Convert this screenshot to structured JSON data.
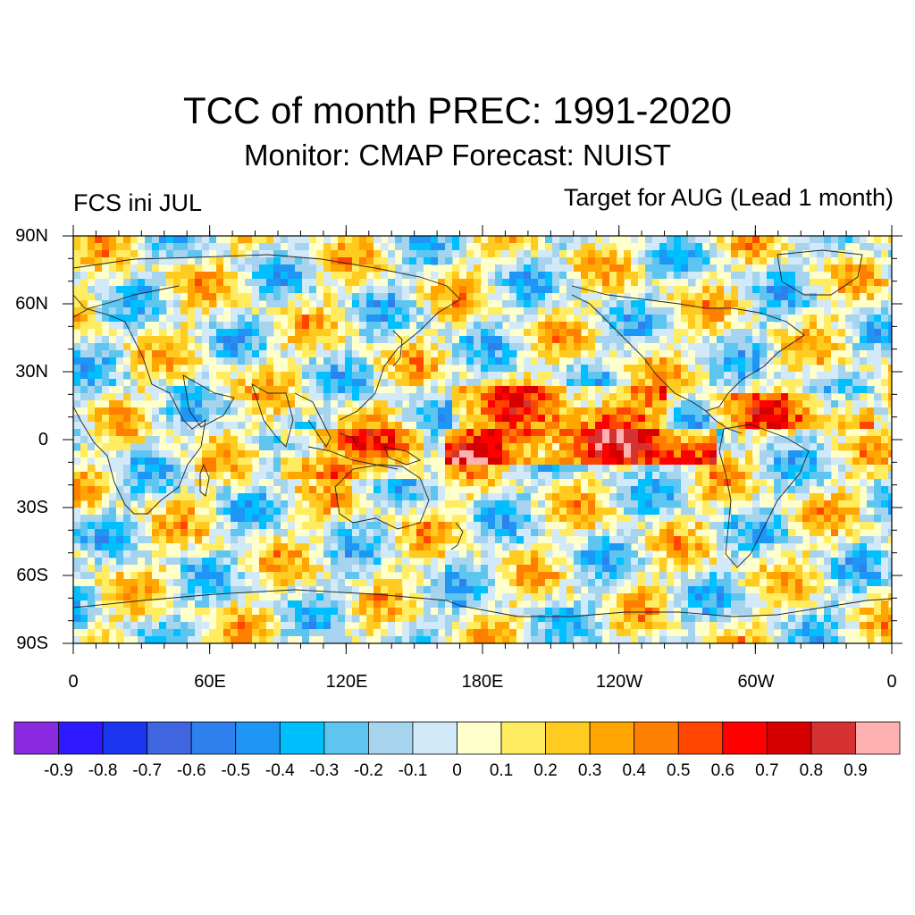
{
  "title": "TCC of month PREC: 1991-2020",
  "subtitle": "Monitor: CMAP   Forecast: NUIST",
  "left_label": "FCS ini JUL",
  "right_label": "Target for AUG (Lead 1 month)",
  "lat_labels": [
    "90N",
    "60N",
    "30N",
    "0",
    "30S",
    "60S",
    "90S"
  ],
  "lon_labels": [
    "0",
    "60E",
    "120E",
    "180E",
    "120W",
    "60W",
    "0"
  ],
  "colorbar": {
    "colors": [
      "#8a2be2",
      "#2f1aff",
      "#1b35f0",
      "#4066e0",
      "#2f80ec",
      "#1e96f5",
      "#00bfff",
      "#5ec4f0",
      "#a6d4ee",
      "#d1e9f8",
      "#ffffcc",
      "#ffec60",
      "#ffcb20",
      "#ffa600",
      "#ff7f00",
      "#ff4500",
      "#ff0000",
      "#d70000",
      "#d63232",
      "#ffb0b0"
    ],
    "labels": [
      "-0.9",
      "-0.8",
      "-0.7",
      "-0.6",
      "-0.5",
      "-0.4",
      "-0.3",
      "-0.2",
      "-0.1",
      "0",
      "0.1",
      "0.2",
      "0.3",
      "0.4",
      "0.5",
      "0.6",
      "0.7",
      "0.8",
      "0.9"
    ]
  }
}
